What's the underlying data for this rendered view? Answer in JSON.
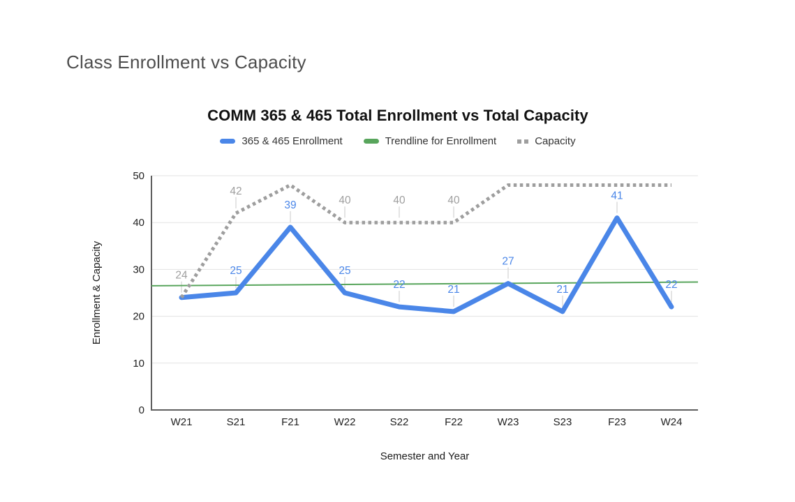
{
  "page": {
    "heading": "Class Enrollment vs Capacity"
  },
  "chart": {
    "title": "COMM 365 & 465 Total Enrollment vs Total Capacity",
    "x_axis_title": "Semester and Year",
    "y_axis_title": "Enrollment & Capacity",
    "legend": [
      {
        "label": "365 & 465 Enrollment",
        "color": "#4a86e8",
        "style": "solid"
      },
      {
        "label": "Trendline for Enrollment",
        "color": "#58a55c",
        "style": "solid"
      },
      {
        "label": "Capacity",
        "color": "#9e9e9e",
        "style": "dotted"
      }
    ],
    "colors": {
      "enrollment": "#4a86e8",
      "trendline": "#58a55c",
      "capacity": "#9e9e9e",
      "gridline": "#e3e3e3",
      "axis_line": "#5f5f5f",
      "tick_label": "#212121",
      "leader_line": "#dadada"
    }
  },
  "chart_data": {
    "type": "line",
    "title": "COMM 365 & 465 Total Enrollment vs Total Capacity",
    "xlabel": "Semester and Year",
    "ylabel": "Enrollment & Capacity",
    "categories": [
      "W21",
      "S21",
      "F21",
      "W22",
      "S22",
      "F22",
      "W23",
      "S23",
      "F23",
      "W24"
    ],
    "series": [
      {
        "name": "365 & 465 Enrollment",
        "color": "#4a86e8",
        "values": [
          24,
          25,
          39,
          25,
          22,
          21,
          27,
          21,
          41,
          22
        ],
        "labels_shown": [
          null,
          25,
          39,
          25,
          22,
          21,
          27,
          21,
          41,
          22
        ]
      },
      {
        "name": "Capacity",
        "color": "#9e9e9e",
        "dashed": true,
        "values": [
          24,
          42,
          48,
          40,
          40,
          40,
          48,
          48,
          48,
          48
        ],
        "labels_shown": [
          24,
          42,
          null,
          40,
          40,
          40,
          null,
          null,
          null,
          null
        ]
      },
      {
        "name": "Trendline for Enrollment",
        "color": "#58a55c",
        "trend_endpoints": [
          26.5,
          27.3
        ]
      }
    ],
    "ylim": [
      0,
      50
    ],
    "yticks": [
      0,
      10,
      20,
      30,
      40,
      50
    ],
    "grid": true,
    "legend_position": "top"
  }
}
